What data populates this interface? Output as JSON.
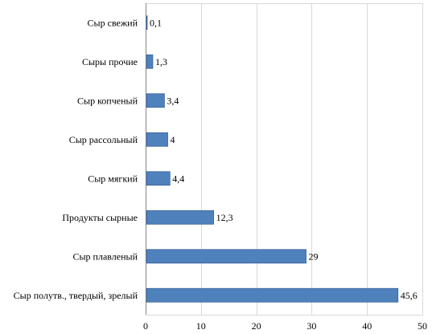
{
  "chart_data": {
    "type": "bar",
    "orientation": "horizontal",
    "categories": [
      "Сыр свежий",
      "Сыры прочие",
      "Сыр копченый",
      "Сыр рассольный",
      "Сыр мягкий",
      "Продукты сырные",
      "Сыр плавленый",
      "Сыр полутв., твердый, зрелый"
    ],
    "values": [
      0.1,
      1.3,
      3.4,
      4,
      4.4,
      12.3,
      29,
      45.6
    ],
    "value_labels": [
      "0,1",
      "1,3",
      "3,4",
      "4",
      "4,4",
      "12,3",
      "29",
      "45,6"
    ],
    "xlim": [
      0,
      50
    ],
    "xticks": [
      0,
      10,
      20,
      30,
      40,
      50
    ],
    "xtick_labels": [
      "0",
      "10",
      "20",
      "30",
      "40",
      "50"
    ],
    "title": "",
    "xlabel": "",
    "ylabel": "",
    "grid": true,
    "legend": "none",
    "bar_color": "#4f81bd",
    "bar_edge_color": "#3a6699"
  }
}
